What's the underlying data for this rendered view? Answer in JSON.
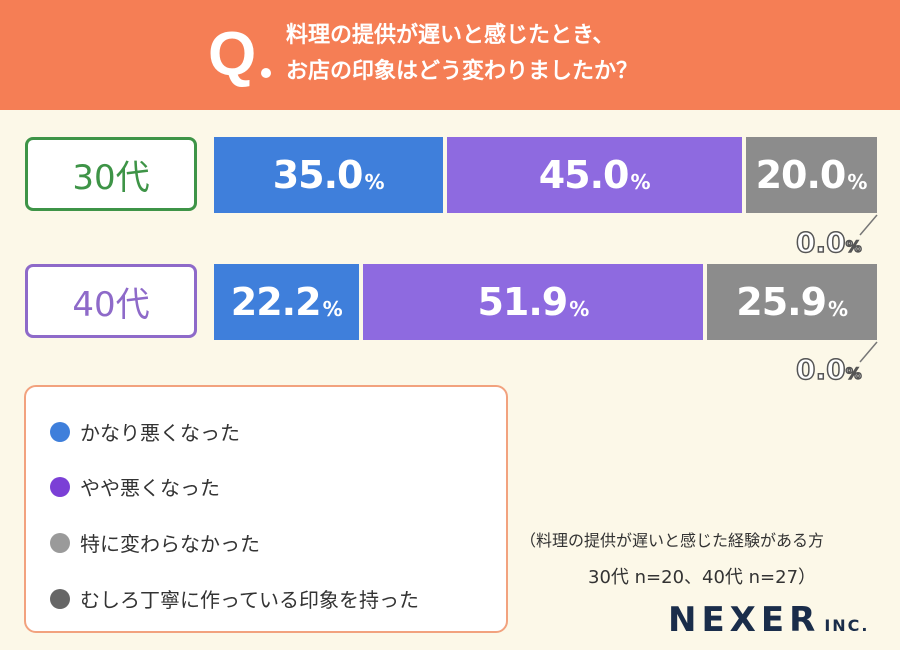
{
  "header": {
    "q_letter": "Q",
    "question_line1": "料理の提供が遅いと感じたとき、",
    "question_line2": "お店の印象はどう変わりましたか？"
  },
  "chart_data": {
    "type": "bar",
    "stacked": true,
    "orientation": "horizontal",
    "categories": [
      "30代",
      "40代"
    ],
    "series": [
      {
        "name": "かなり悪くなった",
        "color": "#3F7FDB",
        "values": [
          35.0,
          22.2
        ]
      },
      {
        "name": "やや悪くなった",
        "color": "#8E6AE0",
        "values": [
          45.0,
          51.9
        ]
      },
      {
        "name": "特に変わらなかった",
        "color": "#8C8C8C",
        "values": [
          20.0,
          25.9
        ]
      },
      {
        "name": "むしろ丁寧に作っている印象を持った",
        "color": "#666666",
        "values": [
          0.0,
          0.0
        ]
      }
    ],
    "value_labels": [
      [
        "35.0",
        "45.0",
        "20.0",
        "0.0"
      ],
      [
        "22.2",
        "51.9",
        "25.9",
        "0.0"
      ]
    ],
    "unit": "%",
    "category_colors": [
      "#3E9447",
      "#8E6AC9"
    ]
  },
  "legend": [
    {
      "label": "かなり悪くなった",
      "color": "#3F7FDB"
    },
    {
      "label": "やや悪くなった",
      "color": "#7B3FD6"
    },
    {
      "label": "特に変わらなかった",
      "color": "#9A9A9A"
    },
    {
      "label": "むしろ丁寧に作っている印象を持った",
      "color": "#666666"
    }
  ],
  "footnote": {
    "line1": "（料理の提供が遅いと感じた経験がある方",
    "line2": "30代 n=20、40代 n=27）"
  },
  "brand": {
    "name": "NEXER",
    "suffix": "INC."
  }
}
